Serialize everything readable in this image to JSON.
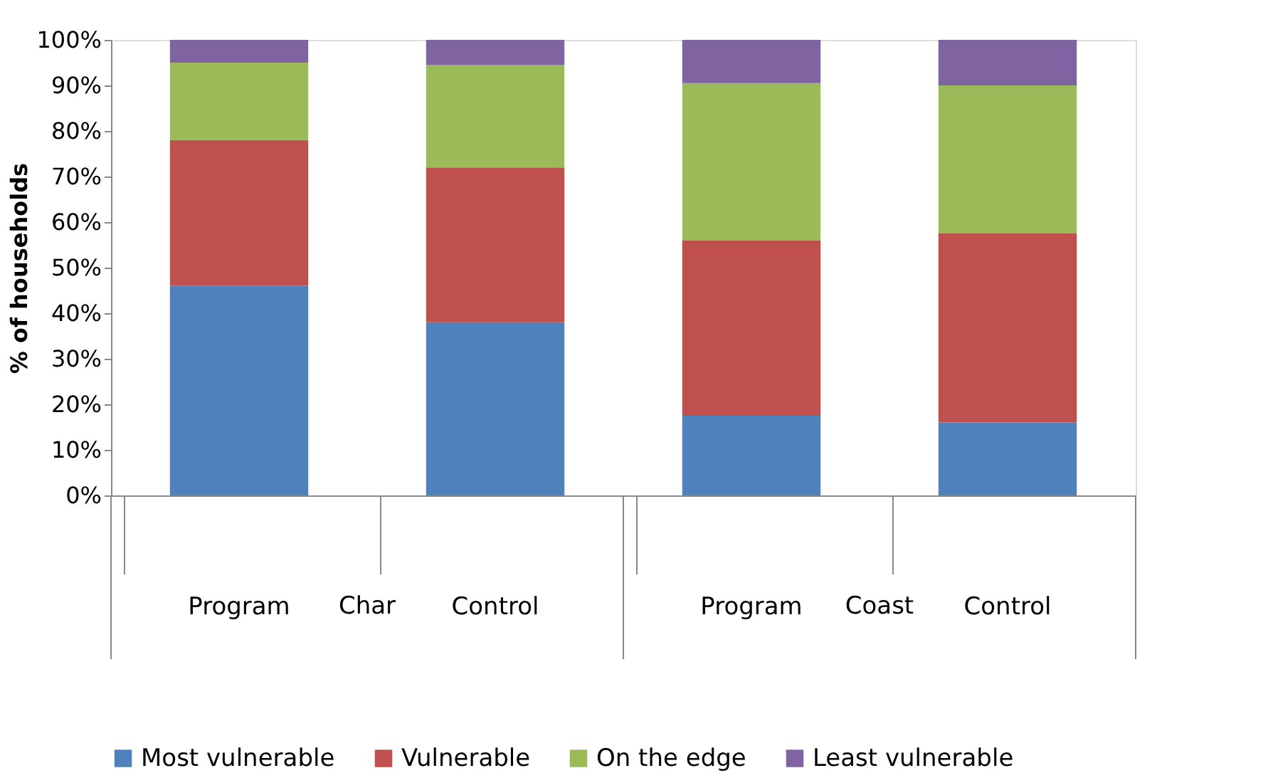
{
  "chart_data": {
    "type": "bar",
    "stacked": true,
    "ylabel": "% of households",
    "categories": [
      "Program",
      "Control",
      "Program",
      "Control"
    ],
    "annotations": [
      "Char",
      "Coast"
    ],
    "series": [
      {
        "name": "Most vulnerable",
        "color": "#4f81bd",
        "values": [
          46,
          38,
          17.5,
          16
        ]
      },
      {
        "name": "Vulnerable",
        "color": "#c0504d",
        "values": [
          32,
          34,
          38.5,
          41.5
        ]
      },
      {
        "name": "On the edge",
        "color": "#9bbb59",
        "values": [
          17,
          22.5,
          34.5,
          32.5
        ]
      },
      {
        "name": "Least vulnerable",
        "color": "#8064a2",
        "values": [
          5,
          5.5,
          9.5,
          10
        ]
      }
    ],
    "ylim": [
      0,
      100
    ],
    "yticks": [
      {
        "value": 0,
        "label": "0%"
      },
      {
        "value": 10,
        "label": "10%"
      },
      {
        "value": 20,
        "label": "20%"
      },
      {
        "value": 30,
        "label": "30%"
      },
      {
        "value": 40,
        "label": "40%"
      },
      {
        "value": 50,
        "label": "50%"
      },
      {
        "value": 60,
        "label": "60%"
      },
      {
        "value": 70,
        "label": "70%"
      },
      {
        "value": 80,
        "label": "80%"
      },
      {
        "value": 90,
        "label": "90%"
      },
      {
        "value": 100,
        "label": "100%"
      }
    ],
    "grid": false,
    "legend": "bottom"
  }
}
